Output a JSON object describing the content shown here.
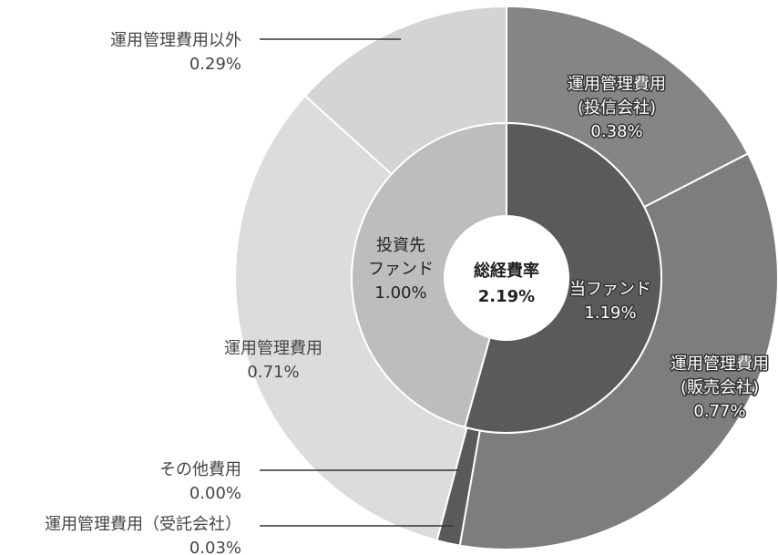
{
  "chart_data": {
    "type": "sunburst",
    "center": {
      "label": "総経費率",
      "value": 2.19,
      "value_label": "2.19%"
    },
    "inner": {
      "categories": [
        [
          "当ファンド"
        ],
        [
          "投資先",
          "ファンド"
        ]
      ],
      "values": [
        1.19,
        1.0
      ],
      "value_labels": [
        "1.19%",
        "1.00%"
      ],
      "colors": [
        "#5b595a",
        "#bcbdbc"
      ]
    },
    "outer": {
      "categories": [
        [
          "運用管理費用",
          "(投信会社)"
        ],
        [
          "運用管理費用",
          "(販売会社)"
        ],
        [
          "運用管理費用（受託会社）"
        ],
        [
          "その他費用"
        ],
        [
          "運用管理費用"
        ],
        [
          "運用管理費用以外"
        ]
      ],
      "values": [
        0.38,
        0.77,
        0.03,
        0.0,
        0.71,
        0.29
      ],
      "value_labels": [
        "0.38%",
        "0.77%",
        "0.03%",
        "0.00%",
        "0.71%",
        "0.29%"
      ],
      "colors": [
        "#858585",
        "#7d7d7d",
        "#5b595a",
        "#5b595a",
        "#dcdcdc",
        "#d4d4d4"
      ]
    }
  }
}
